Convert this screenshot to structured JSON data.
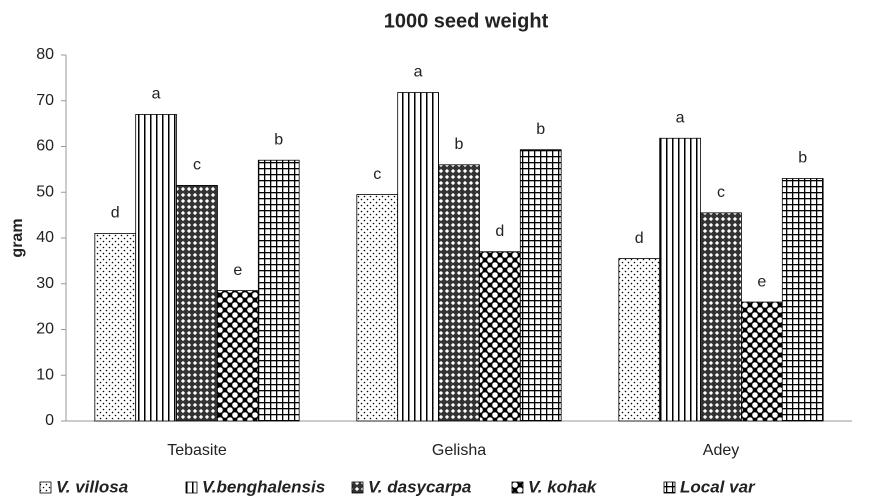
{
  "chart_data": {
    "type": "bar",
    "title": "1000 seed weight",
    "y_label": "gram",
    "categories": [
      "Tebasite",
      "Gelisha",
      "Adey"
    ],
    "series": [
      {
        "name": "V. villosa",
        "color": "#000000",
        "values": [
          41,
          49.5,
          35.5
        ],
        "letters": [
          "d",
          "c",
          "d"
        ]
      },
      {
        "name": "V.benghalensis",
        "color": "#000000",
        "values": [
          67,
          71.8,
          61.8
        ],
        "letters": [
          "a",
          "a",
          "a"
        ]
      },
      {
        "name": "V. dasycarpa",
        "color": "#000000",
        "values": [
          51.5,
          56,
          45.5
        ],
        "letters": [
          "c",
          "b",
          "c"
        ]
      },
      {
        "name": "V. kohak",
        "color": "#000000",
        "values": [
          28.5,
          37,
          26
        ],
        "letters": [
          "e",
          "d",
          "e"
        ]
      },
      {
        "name": "Local var",
        "color": "#000000",
        "values": [
          57,
          59.3,
          53
        ],
        "letters": [
          "b",
          "b",
          "b"
        ]
      }
    ],
    "ylim": [
      0,
      80
    ],
    "yticks": [
      0,
      10,
      20,
      30,
      40,
      50,
      60,
      70,
      80
    ],
    "grid": false,
    "legend": "bottom"
  }
}
